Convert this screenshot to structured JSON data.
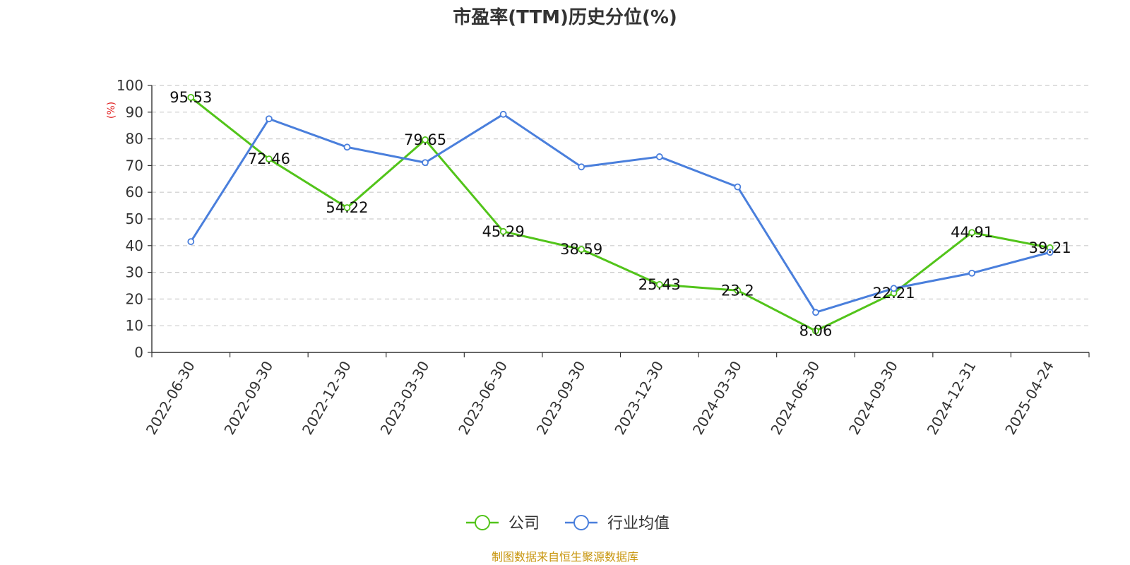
{
  "chart_data": {
    "type": "line",
    "title": "市盈率(TTM)历史分位(%)",
    "ylabel": "(%)",
    "xlabel": "",
    "ylim": [
      0,
      100
    ],
    "yticks": [
      0,
      10,
      20,
      30,
      40,
      50,
      60,
      70,
      80,
      90,
      100
    ],
    "categories": [
      "2022-06-30",
      "2022-09-30",
      "2022-12-30",
      "2023-03-30",
      "2023-06-30",
      "2023-09-30",
      "2023-12-30",
      "2024-03-30",
      "2024-06-30",
      "2024-09-30",
      "2024-12-31",
      "2025-04-24"
    ],
    "series": [
      {
        "name": "公司",
        "color": "#52c41a",
        "values": [
          95.53,
          72.46,
          54.22,
          79.65,
          45.29,
          38.59,
          25.43,
          23.2,
          8.06,
          22.21,
          44.91,
          39.21
        ],
        "show_labels": true
      },
      {
        "name": "行业均值",
        "color": "#4a7fdc",
        "values": [
          41.5,
          87.5,
          76.9,
          71.1,
          89.2,
          69.5,
          73.3,
          62.0,
          15.0,
          24.0,
          29.7,
          37.5
        ],
        "show_labels": false
      }
    ],
    "grid": "horizontal-dashed",
    "legend_position": "bottom-center"
  },
  "source": "制图数据来自恒生聚源数据库"
}
